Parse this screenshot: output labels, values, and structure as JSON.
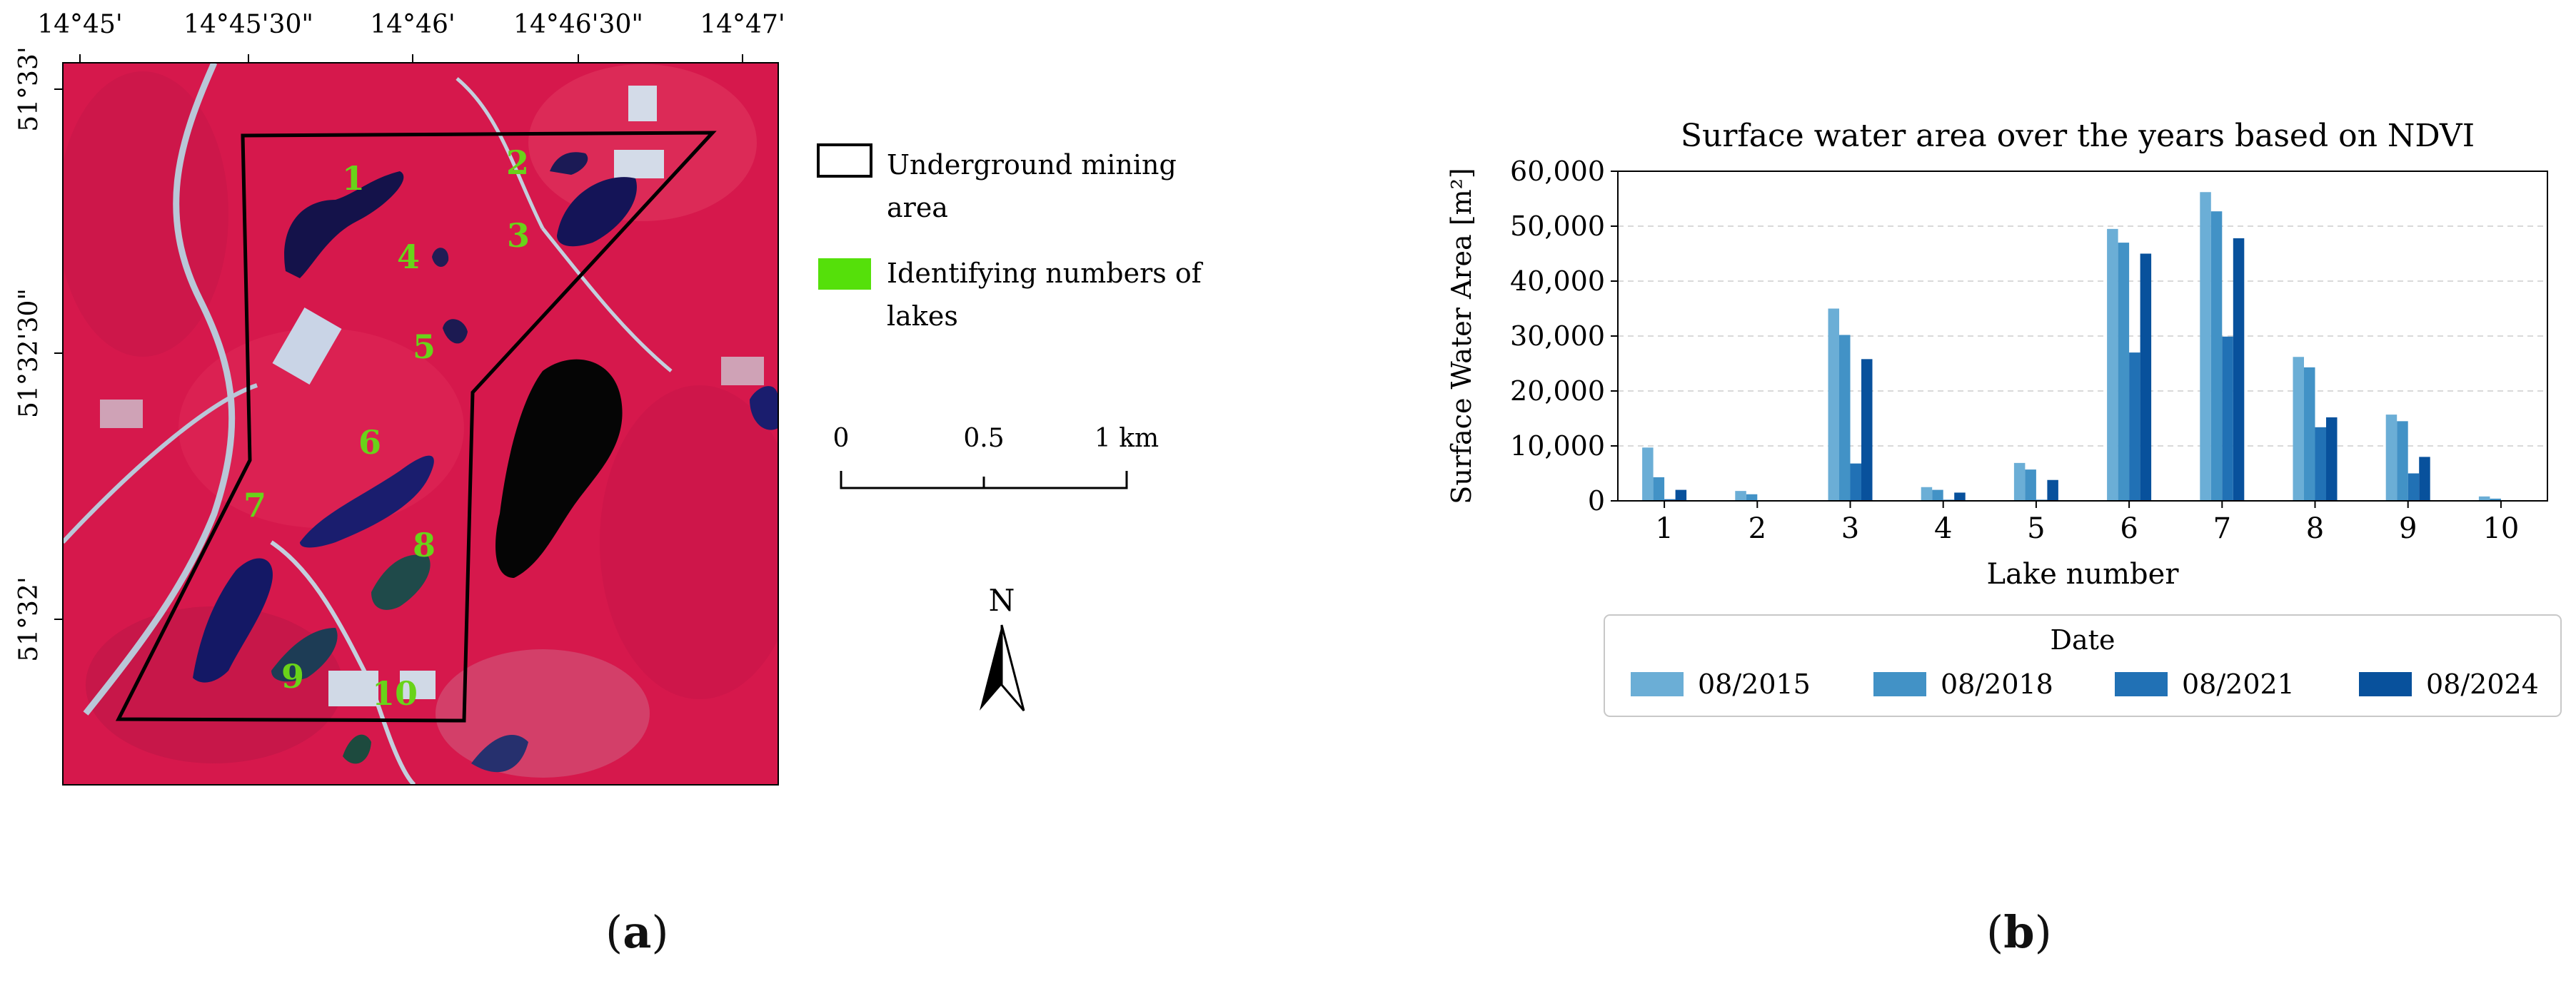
{
  "map": {
    "lon_ticks": [
      "14°45'",
      "14°45'30\"",
      "14°46'",
      "14°46'30\"",
      "14°47'"
    ],
    "lat_ticks": [
      "51°33'",
      "51°32'30\"",
      "51°32'"
    ],
    "lake_labels": [
      "1",
      "2",
      "3",
      "4",
      "5",
      "6",
      "7",
      "8",
      "9",
      "10"
    ],
    "legend": {
      "mining_area": "Underground mining area",
      "lake_numbers": "Identifying numbers of lakes"
    },
    "scale": {
      "labels": [
        "0",
        "0.5",
        "1 km"
      ]
    },
    "north": "N",
    "colors": {
      "vegetation": "#d81a4b",
      "water": "#14124a",
      "boundary": "#000000",
      "lake_label": "#69d319",
      "legend_green": "#55e00a"
    }
  },
  "chart_data": {
    "type": "bar",
    "title": "Surface water area over the years based on NDVI",
    "xlabel": "Lake number",
    "ylabel": "Surface Water Area [m²]",
    "ylim": [
      0,
      60000
    ],
    "yticks": [
      0,
      10000,
      20000,
      30000,
      40000,
      50000,
      60000
    ],
    "ytick_labels": [
      "0",
      "10,000",
      "20,000",
      "30,000",
      "40,000",
      "50,000",
      "60,000"
    ],
    "categories": [
      "1",
      "2",
      "3",
      "4",
      "5",
      "6",
      "7",
      "8",
      "9",
      "10"
    ],
    "legend_title": "Date",
    "series": [
      {
        "name": "08/2015",
        "color": "#6baed6",
        "values": [
          9700,
          1800,
          35000,
          2500,
          6900,
          49500,
          56200,
          26200,
          15700,
          800
        ]
      },
      {
        "name": "08/2018",
        "color": "#4292c6",
        "values": [
          4300,
          1200,
          30200,
          2000,
          5700,
          47000,
          52700,
          24300,
          14500,
          400
        ]
      },
      {
        "name": "08/2021",
        "color": "#2171b5",
        "values": [
          300,
          0,
          6800,
          200,
          200,
          27000,
          29900,
          13400,
          5000,
          0
        ]
      },
      {
        "name": "08/2024",
        "color": "#08519c",
        "values": [
          2000,
          0,
          25800,
          1500,
          3800,
          45000,
          47800,
          15200,
          8000,
          0
        ]
      }
    ],
    "grid": true,
    "legend_placement": "bottom"
  },
  "panel_labels": {
    "a": "a",
    "b": "b"
  }
}
